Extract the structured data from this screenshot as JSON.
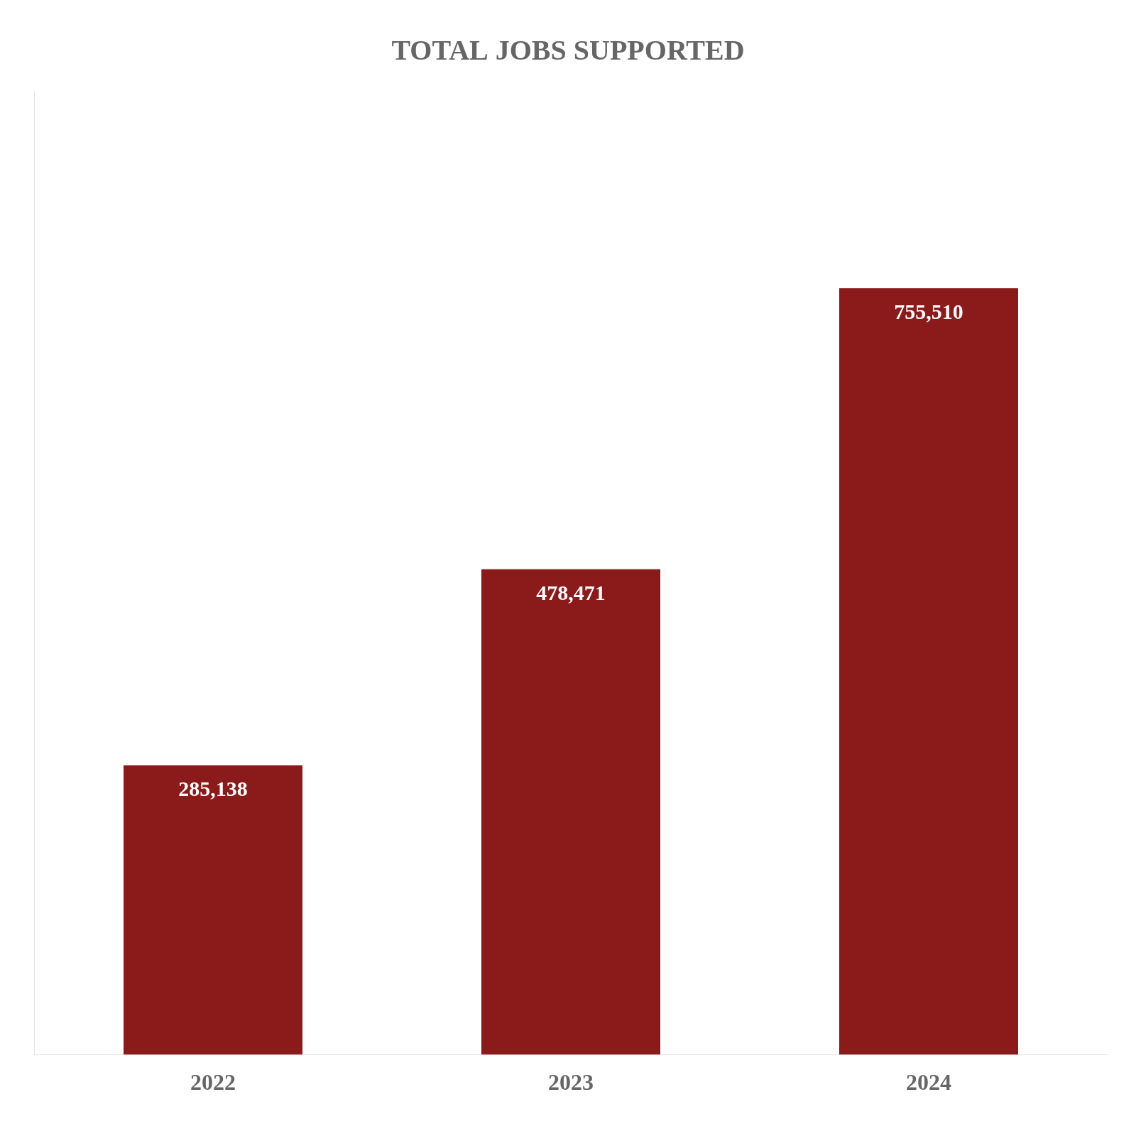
{
  "chart_data": {
    "type": "bar",
    "title": "TOTAL JOBS SUPPORTED",
    "categories": [
      "2022",
      "2023",
      "2024"
    ],
    "values": [
      285138,
      478471,
      755510
    ],
    "value_labels": [
      "285,138",
      "478,471",
      "755,510"
    ],
    "data_labels": true,
    "color": "#8B1A1A",
    "ylim": [
      0,
      950000
    ],
    "yticks": [],
    "tick_labels": "x",
    "grid": false
  }
}
